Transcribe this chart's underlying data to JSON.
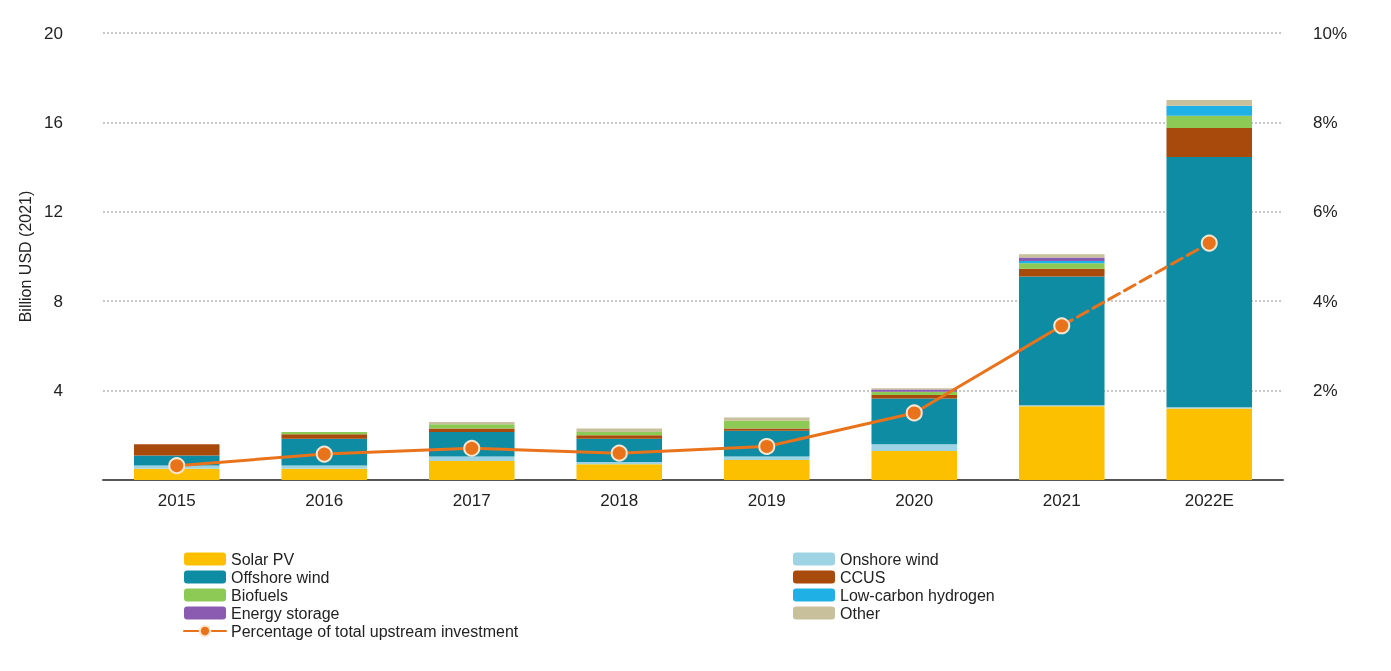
{
  "chart_data": {
    "type": "bar",
    "stacked": true,
    "ylabel": "Billion USD (2021)",
    "categories": [
      "2015",
      "2016",
      "2017",
      "2018",
      "2019",
      "2020",
      "2021",
      "2022E"
    ],
    "ylim": [
      0,
      20
    ],
    "yticks": [
      {
        "value": 0,
        "label": null
      },
      4,
      8,
      12,
      16,
      20
    ],
    "y2lim": [
      0,
      10
    ],
    "y2ticks": [
      {
        "value": 0,
        "label": null
      },
      {
        "value": 2,
        "label": "2%"
      },
      {
        "value": 4,
        "label": "4%"
      },
      {
        "value": 6,
        "label": "6%"
      },
      {
        "value": 8,
        "label": "8%"
      },
      {
        "value": 10,
        "label": "10%"
      }
    ],
    "grid": "y",
    "legend": "bottom",
    "marker": "circle",
    "series": [
      {
        "name": "Solar PV",
        "color": "#fcc000",
        "values": [
          0.5,
          0.5,
          0.85,
          0.7,
          0.9,
          1.3,
          3.3,
          3.2
        ]
      },
      {
        "name": "Onshore wind",
        "color": "#9ed3e3",
        "values": [
          0.15,
          0.15,
          0.2,
          0.1,
          0.15,
          0.3,
          0.05,
          0.05
        ]
      },
      {
        "name": "Offshore wind",
        "color": "#0e8ca3",
        "values": [
          0.45,
          1.2,
          1.1,
          1.05,
          1.15,
          2.05,
          5.75,
          11.2
        ]
      },
      {
        "name": "CCUS",
        "color": "#a84a0b",
        "values": [
          0.5,
          0.2,
          0.15,
          0.15,
          0.1,
          0.15,
          0.35,
          1.3
        ]
      },
      {
        "name": "Biofuels",
        "color": "#8dc955",
        "values": [
          0,
          0.1,
          0.2,
          0.15,
          0.35,
          0.15,
          0.25,
          0.55
        ]
      },
      {
        "name": "Low-carbon hydrogen",
        "color": "#1fb1e6",
        "values": [
          0,
          0,
          0,
          0,
          0,
          0,
          0.1,
          0.45
        ]
      },
      {
        "name": "Energy storage",
        "color": "#8a5bb0",
        "values": [
          0,
          0,
          0,
          0,
          0,
          0.1,
          0.15,
          0
        ]
      },
      {
        "name": "Other",
        "color": "#c8c09a",
        "values": [
          0,
          0,
          0.1,
          0.15,
          0.15,
          0.05,
          0.15,
          0.25
        ]
      },
      {
        "name": "Percentage of total upstream investment",
        "type": "line",
        "axis": "y2",
        "line_style": "solid",
        "color": "#e8731b",
        "values": [
          0.32,
          0.58,
          0.71,
          0.6,
          0.75,
          1.5,
          3.45,
          null
        ]
      },
      {
        "type": "line",
        "axis": "y2",
        "line_style": "dashed",
        "color": "#e8731b",
        "values": [
          null,
          null,
          null,
          null,
          null,
          null,
          3.45,
          5.3
        ]
      }
    ]
  }
}
